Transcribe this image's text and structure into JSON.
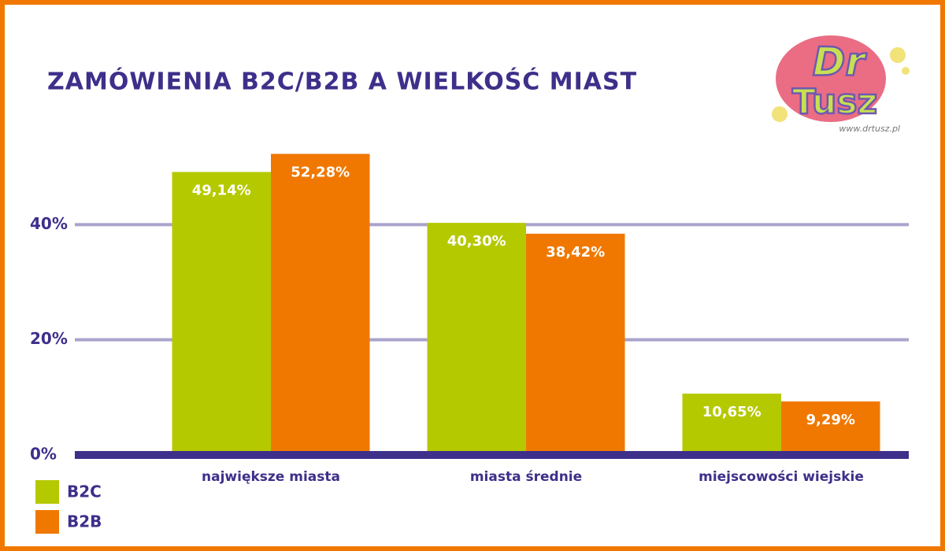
{
  "chart_data": {
    "type": "bar",
    "title": "ZAMÓWIENIA B2C/B2B A WIELKOŚĆ MIAST",
    "categories": [
      "największe miasta",
      "miasta średnie",
      "miejscowości wiejskie"
    ],
    "series": [
      {
        "name": "B2C",
        "color": "#b5c900",
        "values": [
          49.14,
          40.3,
          10.65
        ],
        "value_labels": [
          "49,14%",
          "40,30%",
          "10,65%"
        ]
      },
      {
        "name": "B2B",
        "color": "#f07800",
        "values": [
          52.28,
          38.42,
          9.29
        ],
        "value_labels": [
          "52,28%",
          "38,42%",
          "9,29%"
        ]
      }
    ],
    "ylim": [
      0,
      60
    ],
    "yticks": [
      {
        "value": 0,
        "label": "0%"
      },
      {
        "value": 20,
        "label": "20%"
      },
      {
        "value": 40,
        "label": "40%"
      }
    ],
    "grid": true,
    "legend": "bottom-left"
  },
  "logo": {
    "line1": "Dr",
    "line2": "Tusz",
    "url": "www.drtusz.pl"
  }
}
